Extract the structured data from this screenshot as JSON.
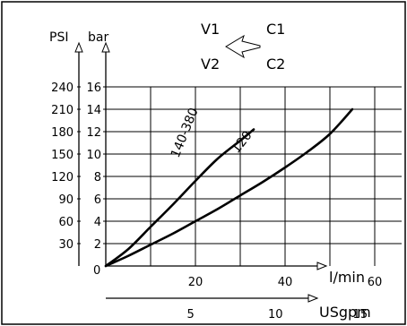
{
  "chart_data": {
    "type": "line",
    "xlabel": "l/min",
    "x_units_secondary": "USgpm",
    "ylabel": "bar",
    "ylabel_secondary": "PSI",
    "xlim": [
      0,
      66
    ],
    "ylim": [
      0,
      16
    ],
    "x_ticks": [
      "20",
      "40",
      "60"
    ],
    "x2_ticks": [
      "5",
      "10",
      "15"
    ],
    "y_ticks": [
      "2",
      "4",
      "6",
      "8",
      "10",
      "12",
      "14",
      "16"
    ],
    "y2_ticks": [
      "30",
      "60",
      "90",
      "120",
      "150",
      "180",
      "210",
      "240"
    ],
    "grid": true,
    "series": [
      {
        "name": "140-380",
        "x": [
          0,
          5,
          10,
          15,
          20,
          25,
          30,
          33
        ],
        "y": [
          0,
          1.5,
          3.5,
          5.5,
          7.6,
          9.6,
          11.2,
          12.2
        ]
      },
      {
        "name": "120",
        "x": [
          0,
          5,
          10,
          15,
          20,
          25,
          30,
          35,
          40,
          45,
          50,
          55
        ],
        "y": [
          0,
          0.9,
          1.9,
          2.9,
          4.0,
          5.1,
          6.3,
          7.5,
          8.8,
          10.2,
          11.8,
          14.0
        ]
      }
    ],
    "symbol": {
      "top_left": "V1",
      "bottom_left": "V2",
      "top_right": "C1",
      "bottom_right": "C2"
    }
  }
}
